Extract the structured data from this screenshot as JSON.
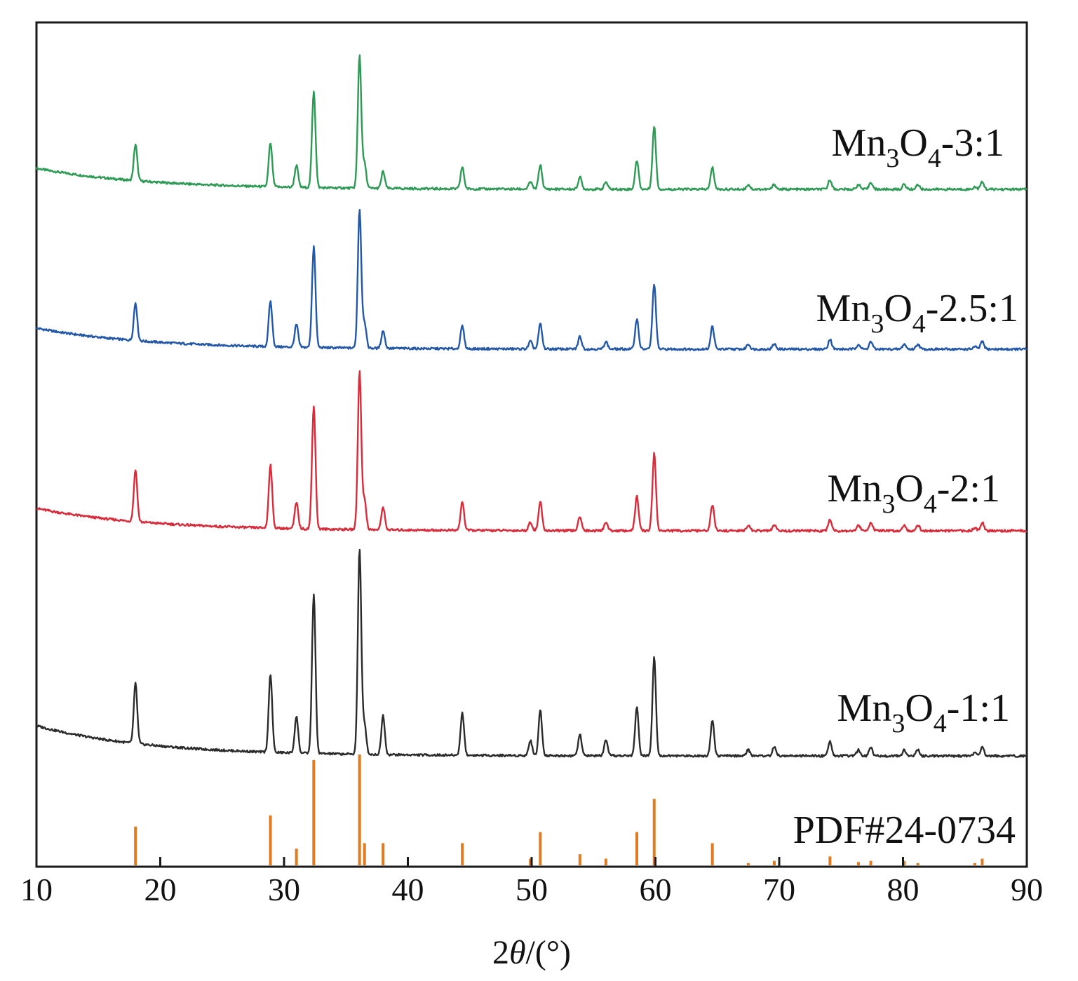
{
  "chart_data": {
    "type": "line",
    "title": "",
    "xlabel": "2θ/(°)",
    "xlabel_parts": {
      "prefix": "2",
      "symbol": "θ",
      "suffix": "/(°)"
    },
    "ylabel": "",
    "xlim": [
      10,
      90
    ],
    "xticks": [
      10,
      20,
      30,
      40,
      50,
      60,
      70,
      80,
      90
    ],
    "y_ticks_shown": false,
    "grid": false,
    "legend": "labels placed at right above each trace",
    "reflections_2theta": [
      18.0,
      28.9,
      31.0,
      32.4,
      36.1,
      36.5,
      38.0,
      44.4,
      49.9,
      50.7,
      53.9,
      56.0,
      58.5,
      59.9,
      64.6,
      67.5,
      69.6,
      74.1,
      76.4,
      77.4,
      80.1,
      81.2,
      85.8,
      86.4
    ],
    "series": [
      {
        "name": "Mn3O4-3:1",
        "label": {
          "base1": "Mn",
          "sub1": "3",
          "base2": "O",
          "sub2": "4",
          "suffix": "-3:1"
        },
        "color": "#2e9a55",
        "intensities": [
          0.15,
          0.18,
          0.09,
          0.4,
          0.55,
          0.1,
          0.07,
          0.09,
          0.03,
          0.1,
          0.05,
          0.03,
          0.12,
          0.26,
          0.09,
          0.02,
          0.02,
          0.04,
          0.02,
          0.03,
          0.02,
          0.02,
          0.01,
          0.03
        ]
      },
      {
        "name": "Mn3O4-2.5:1",
        "label": {
          "base1": "Mn",
          "sub1": "3",
          "base2": "O",
          "sub2": "4",
          "suffix": "-2.5:1"
        },
        "color": "#2357a8",
        "intensities": [
          0.15,
          0.18,
          0.09,
          0.4,
          0.55,
          0.1,
          0.07,
          0.09,
          0.03,
          0.1,
          0.05,
          0.03,
          0.12,
          0.26,
          0.09,
          0.02,
          0.02,
          0.04,
          0.02,
          0.03,
          0.02,
          0.02,
          0.01,
          0.03
        ]
      },
      {
        "name": "Mn3O4-2:1",
        "label": {
          "base1": "Mn",
          "sub1": "3",
          "base2": "O",
          "sub2": "4",
          "suffix": "-2:1"
        },
        "color": "#d92b3a",
        "intensities": [
          0.18,
          0.22,
          0.09,
          0.43,
          0.55,
          0.1,
          0.08,
          0.1,
          0.03,
          0.1,
          0.05,
          0.03,
          0.12,
          0.27,
          0.09,
          0.02,
          0.02,
          0.04,
          0.02,
          0.03,
          0.02,
          0.02,
          0.01,
          0.03
        ]
      },
      {
        "name": "Mn3O4-1:1",
        "label": {
          "base1": "Mn",
          "sub1": "3",
          "base2": "O",
          "sub2": "4",
          "suffix": "-1:1"
        },
        "color": "#2b2b2b",
        "intensities": [
          0.2,
          0.26,
          0.12,
          0.53,
          0.68,
          0.1,
          0.13,
          0.14,
          0.05,
          0.15,
          0.07,
          0.05,
          0.16,
          0.33,
          0.12,
          0.02,
          0.03,
          0.05,
          0.02,
          0.03,
          0.02,
          0.02,
          0.01,
          0.03
        ]
      }
    ],
    "reference": {
      "name": "PDF#24-0734",
      "color": "#e07b22",
      "intensities": [
        0.35,
        0.45,
        0.15,
        0.95,
        1.0,
        0.2,
        0.2,
        0.2,
        0.06,
        0.3,
        0.1,
        0.06,
        0.3,
        0.6,
        0.2,
        0.02,
        0.04,
        0.08,
        0.03,
        0.04,
        0.04,
        0.02,
        0.02,
        0.06
      ]
    }
  }
}
